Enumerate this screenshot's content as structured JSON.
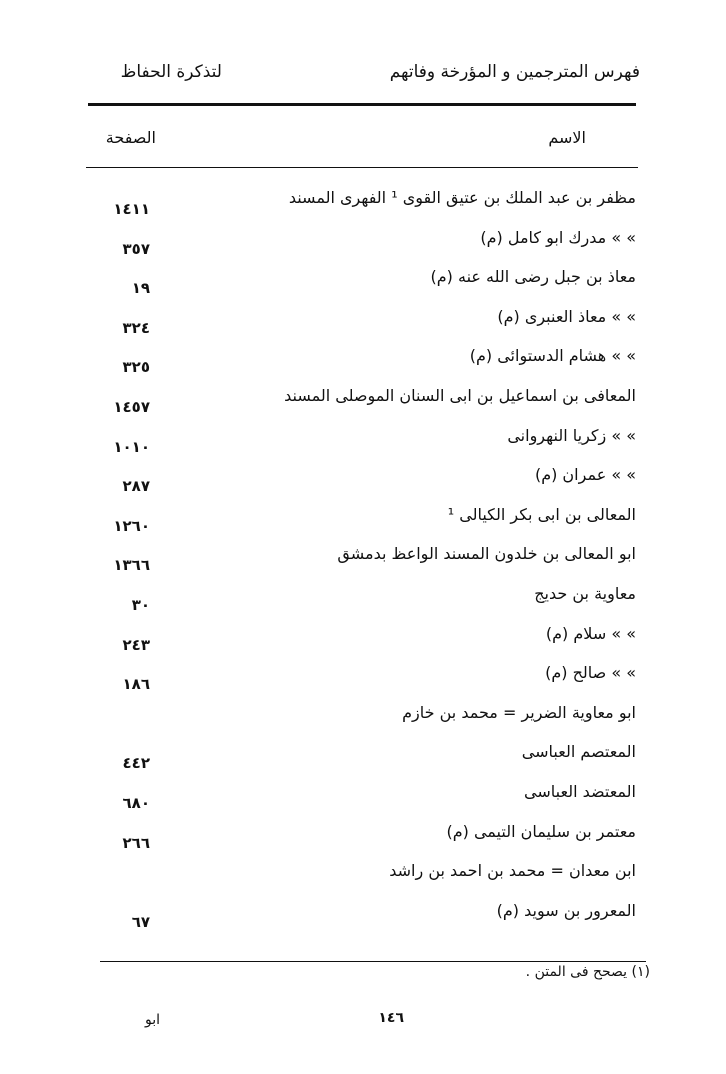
{
  "header": {
    "right_title": "فهرس المترجمين و المؤرخة وفاتهم",
    "left_title": "لتذكرة الحفاظ"
  },
  "columns": {
    "name": "الاسم",
    "page": "الصفحة"
  },
  "rows": [
    {
      "name": "مظفر بن عبد الملك بن عتيق القوى ¹ الفهرى المسند",
      "page": "١٤١١"
    },
    {
      "name": "»  »  مدرك ابو كامل   (م)",
      "page": "٣٥٧"
    },
    {
      "name": "معاذ بن جبل رضى الله عنه   (م)",
      "page": "١٩"
    },
    {
      "name": "»  »  معاذ العنبرى   (م)",
      "page": "٣٢٤"
    },
    {
      "name": "»  »  هشام الدستوائى   (م)",
      "page": "٣٢٥"
    },
    {
      "name": "المعافى بن اسماعيل بن ابى السنان الموصلى المسند",
      "page": "١٤٥٧"
    },
    {
      "name": "»  »  زكريا النهروانى",
      "page": "١٠١٠"
    },
    {
      "name": "»  »  عمران   (م)",
      "page": "٢٨٧"
    },
    {
      "name": "المعالى بن ابى بكر الكيالى ¹",
      "page": "١٢٦٠"
    },
    {
      "name": "ابو المعالى بن خلدون المسند الواعظ بدمشق",
      "page": "١٣٦٦"
    },
    {
      "name": "معاوية بن حديج",
      "page": "٣٠"
    },
    {
      "name": "»  »  سلام   (م)",
      "page": "٢٤٣"
    },
    {
      "name": "»  »  صالح   (م)",
      "page": "١٨٦"
    },
    {
      "name": "ابو معاوية الضرير = محمد بن خازم",
      "page": ""
    },
    {
      "name": "المعتصم العباسى",
      "page": "٤٤٢"
    },
    {
      "name": "المعتضد العباسى",
      "page": "٦٨٠"
    },
    {
      "name": "معتمر بن سليمان التيمى   (م)",
      "page": "٢٦٦"
    },
    {
      "name": "ابن معدان = محمد بن احمد بن راشد",
      "page": ""
    },
    {
      "name": "المعرور بن سويد   (م)",
      "page": "٦٧"
    }
  ],
  "footnote": "(١) يصحح فى المتن .",
  "page_number": "١٤٦",
  "catchword": "ابو"
}
